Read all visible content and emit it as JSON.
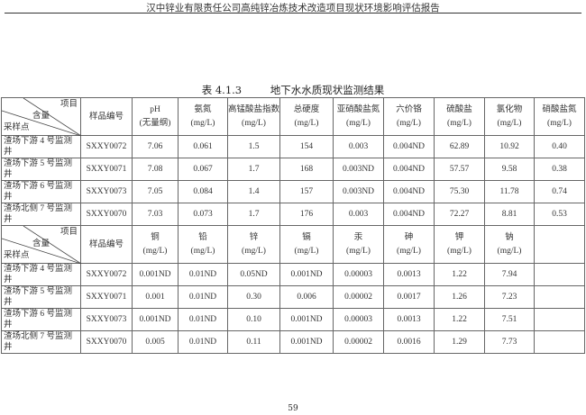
{
  "header": "汉中锌业有限责任公司高纯锌冶炼技术改造项目现状环境影响评估报告",
  "caption": {
    "number": "表 4.1.3",
    "title": "地下水水质现状监测结果"
  },
  "diag": {
    "item": "项目",
    "content": "含量",
    "site": "采样点"
  },
  "sample_col": "样品编号",
  "table1": {
    "columns": [
      {
        "name": "pH",
        "unit": "(无量纲)"
      },
      {
        "name": "氨氮",
        "unit": "(mg/L)"
      },
      {
        "name": "高锰酸盐指数",
        "unit": "(mg/L)"
      },
      {
        "name": "总硬度",
        "unit": "(mg/L)"
      },
      {
        "name": "亚硝酸盐氮",
        "unit": "(mg/L)"
      },
      {
        "name": "六价铬",
        "unit": "(mg/L)"
      },
      {
        "name": "硫酸盐",
        "unit": "(mg/L)"
      },
      {
        "name": "氯化物",
        "unit": "(mg/L)"
      },
      {
        "name": "硝酸盐氮",
        "unit": "(mg/L)"
      }
    ],
    "rows": [
      {
        "site": "渣场下游 4 号监测井",
        "sample": "SXXY0072",
        "values": [
          "7.06",
          "0.061",
          "1.5",
          "154",
          "0.003",
          "0.004ND",
          "62.89",
          "10.92",
          "0.40"
        ]
      },
      {
        "site": "渣场下游 5 号监测井",
        "sample": "SXXY0071",
        "values": [
          "7.08",
          "0.067",
          "1.7",
          "168",
          "0.003ND",
          "0.004ND",
          "57.57",
          "9.58",
          "0.38"
        ]
      },
      {
        "site": "渣场下游 6 号监测井",
        "sample": "SXXY0073",
        "values": [
          "7.05",
          "0.084",
          "1.4",
          "157",
          "0.003ND",
          "0.004ND",
          "75.30",
          "11.78",
          "0.74"
        ]
      },
      {
        "site": "渣场北侧 7 号监测井",
        "sample": "SXXY0070",
        "values": [
          "7.03",
          "0.073",
          "1.7",
          "176",
          "0.003",
          "0.004ND",
          "72.27",
          "8.81",
          "0.53"
        ]
      }
    ]
  },
  "table2": {
    "columns": [
      {
        "name": "铜",
        "unit": "(mg/L)"
      },
      {
        "name": "铅",
        "unit": "(mg/L)"
      },
      {
        "name": "锌",
        "unit": "(mg/L)"
      },
      {
        "name": "镉",
        "unit": "(mg/L)"
      },
      {
        "name": "汞",
        "unit": "(mg/L)"
      },
      {
        "name": "砷",
        "unit": "(mg/L)"
      },
      {
        "name": "钾",
        "unit": "(mg/L)"
      },
      {
        "name": "钠",
        "unit": "(mg/L)"
      },
      {
        "name": "",
        "unit": ""
      }
    ],
    "rows": [
      {
        "site": "渣场下游 4 号监测井",
        "sample": "SXXY0072",
        "values": [
          "0.001ND",
          "0.01ND",
          "0.05ND",
          "0.001ND",
          "0.00003",
          "0.0013",
          "1.22",
          "7.94",
          ""
        ]
      },
      {
        "site": "渣场下游 5 号监测井",
        "sample": "SXXY0071",
        "values": [
          "0.001",
          "0.01ND",
          "0.30",
          "0.006",
          "0.00002",
          "0.0017",
          "1.26",
          "7.23",
          ""
        ]
      },
      {
        "site": "渣场下游 6 号监测井",
        "sample": "SXXY0073",
        "values": [
          "0.001ND",
          "0.01ND",
          "0.10",
          "0.001ND",
          "0.00003",
          "0.0013",
          "1.22",
          "7.51",
          ""
        ]
      },
      {
        "site": "渣场北侧 7 号监测井",
        "sample": "SXXY0070",
        "values": [
          "0.005",
          "0.01ND",
          "0.11",
          "0.001ND",
          "0.00002",
          "0.0016",
          "1.29",
          "7.73",
          ""
        ]
      }
    ]
  },
  "page_number": "59"
}
